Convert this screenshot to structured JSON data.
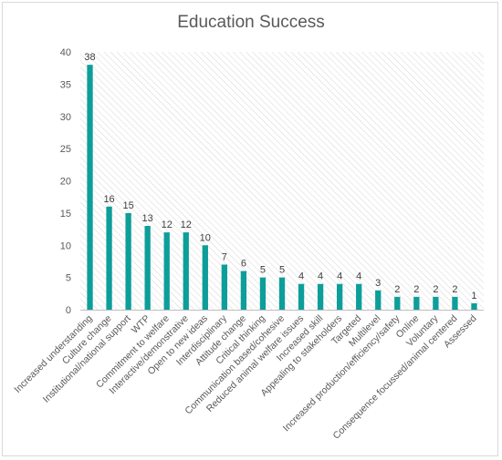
{
  "chart_data": {
    "type": "bar",
    "title": "Education Success",
    "categories": [
      "Increased understanding",
      "Culture change",
      "Institutional/national support",
      "WTP",
      "Commitment to welfare",
      "Interactive/demonstrative",
      "Open to new ideas",
      "Interdisciplinary",
      "Attitude change",
      "Critical thinking",
      "Communication based/cohesive",
      "Reduced animal welfare issues",
      "Increased skill",
      "Appealing to stakeholders",
      "Targeted",
      "Multilevel",
      "Increased production/efficiency/safety",
      "Online",
      "Voluntary",
      "Consequence focussed/animal centered",
      "Assessed"
    ],
    "values": [
      38,
      16,
      15,
      13,
      12,
      12,
      10,
      7,
      6,
      5,
      5,
      4,
      4,
      4,
      4,
      3,
      2,
      2,
      2,
      2,
      1
    ],
    "ylim": [
      0,
      40
    ],
    "yticks": [
      0,
      5,
      10,
      15,
      20,
      25,
      30,
      35,
      40
    ],
    "data_labels": true,
    "grid": false,
    "plot_background": "diagonal hatch",
    "bar_color": "#0e9e9a",
    "hatch_color": "#d6d6d6",
    "text_color": "#595959"
  }
}
